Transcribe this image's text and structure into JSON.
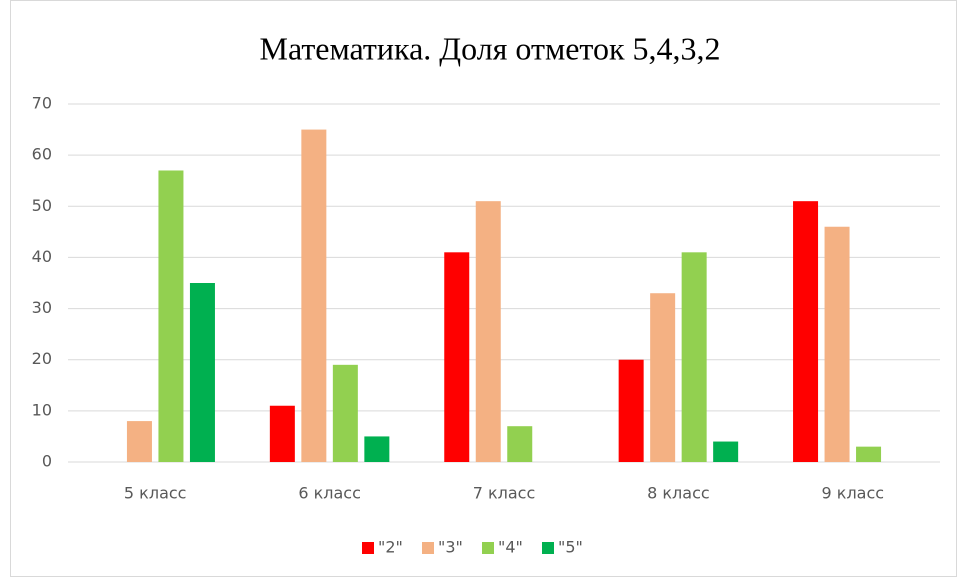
{
  "chart_data": {
    "type": "bar",
    "title": "Математика. Доля отметок 5,4,3,2",
    "categories": [
      "5 класс",
      "6 класс",
      "7 класс",
      "8 класс",
      "9 класс"
    ],
    "series": [
      {
        "name": "\"2\"",
        "color": "#ff0000",
        "values": [
          0,
          11,
          41,
          20,
          51
        ]
      },
      {
        "name": "\"3\"",
        "color": "#f4b183",
        "values": [
          8,
          65,
          51,
          33,
          46
        ]
      },
      {
        "name": "\"4\"",
        "color": "#92d050",
        "values": [
          57,
          19,
          7,
          41,
          3
        ]
      },
      {
        "name": "\"5\"",
        "color": "#00b050",
        "values": [
          35,
          5,
          0,
          4,
          0
        ]
      }
    ],
    "ylim": [
      0,
      70
    ],
    "yticks": [
      0,
      10,
      20,
      30,
      40,
      50,
      60,
      70
    ],
    "grid": true,
    "legend": "bottom"
  }
}
